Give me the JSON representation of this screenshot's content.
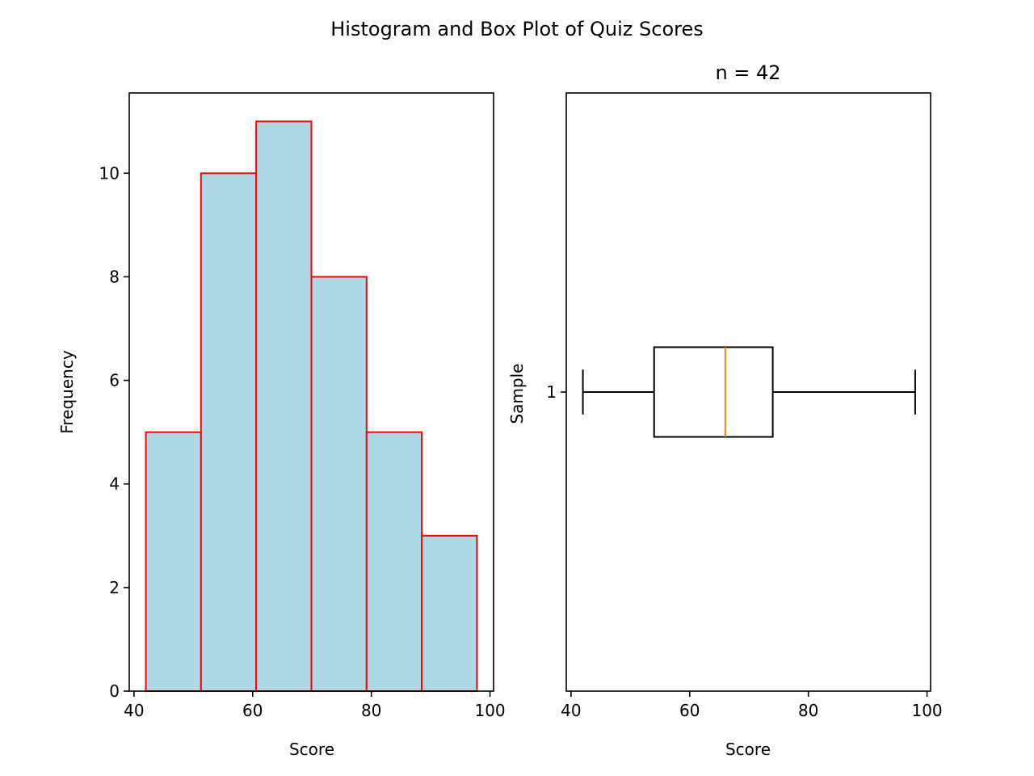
{
  "figure": {
    "suptitle": "Histogram and Box Plot of Quiz Scores"
  },
  "chart_data": [
    {
      "type": "bar",
      "subtype": "histogram",
      "title": "",
      "xlabel": "Score",
      "ylabel": "Frequency",
      "bin_edges": [
        42.0,
        51.3,
        60.6,
        69.9,
        79.2,
        88.5,
        97.8
      ],
      "values": [
        5,
        10,
        11,
        8,
        5,
        3
      ],
      "xlim": [
        39.2,
        100.6
      ],
      "ylim": [
        0,
        11.55
      ],
      "xticks": [
        40,
        60,
        80,
        100
      ],
      "yticks": [
        0,
        2,
        4,
        6,
        8,
        10
      ],
      "bar_color": "#add8e6",
      "edge_color": "#ff0000",
      "grid": false
    },
    {
      "type": "box",
      "title": "n = 42",
      "xlabel": "Score",
      "ylabel": "Sample",
      "orientation": "horizontal",
      "boxes": [
        {
          "label": "1",
          "whisker_low": 42,
          "q1": 54,
          "median": 66,
          "q3": 74,
          "whisker_high": 98
        }
      ],
      "xlim": [
        39.2,
        100.6
      ],
      "ylim": [
        0.5,
        1.5
      ],
      "xticks": [
        40,
        60,
        80,
        100
      ],
      "median_color": "#ff7f0e",
      "grid": false
    }
  ]
}
